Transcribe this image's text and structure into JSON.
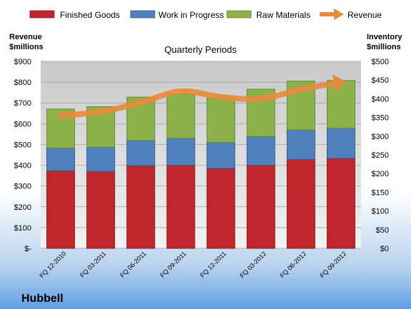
{
  "chart_data": {
    "type": "bar",
    "stacked": true,
    "title": "Quarterly Periods",
    "brand": "Hubbell",
    "categories": [
      "FQ 12-2010",
      "FQ 03-2011",
      "FQ 06-2011",
      "FQ 09-2011",
      "FQ 12-2011",
      "FQ 03-2012",
      "FQ 06-2012",
      "FQ 09-2012"
    ],
    "series": [
      {
        "name": "Finished Goods",
        "axis": "left",
        "color": "#c0272d",
        "values": [
          373,
          370,
          398,
          400,
          385,
          400,
          428,
          433
        ]
      },
      {
        "name": "Work in Progress",
        "axis": "left",
        "color": "#4f81bd",
        "values": [
          110,
          117,
          122,
          130,
          125,
          138,
          142,
          145
        ]
      },
      {
        "name": "Raw Materials",
        "axis": "left",
        "color": "#8cb04a",
        "values": [
          188,
          195,
          208,
          213,
          215,
          228,
          235,
          230
        ]
      }
    ],
    "line_series": {
      "name": "Revenue",
      "axis": "right",
      "color": "#e88a3c",
      "values": [
        355,
        365,
        390,
        420,
        405,
        400,
        425,
        445
      ]
    },
    "left_axis": {
      "label_line1": "Revenue",
      "label_line2": "$millions",
      "min": 0,
      "max": 900,
      "step": 100,
      "tick_labels": [
        "$-",
        "$100",
        "$200",
        "$300",
        "$400",
        "$500",
        "$600",
        "$700",
        "$800",
        "$900"
      ]
    },
    "right_axis": {
      "label_line1": "Inventory",
      "label_line2": "$millions",
      "min": 0,
      "max": 500,
      "step": 50,
      "tick_labels": [
        "$0",
        "$50",
        "$100",
        "$150",
        "$200",
        "$250",
        "$300",
        "$350",
        "$400",
        "$450",
        "$500"
      ]
    },
    "grid": true,
    "legend_position": "top"
  }
}
